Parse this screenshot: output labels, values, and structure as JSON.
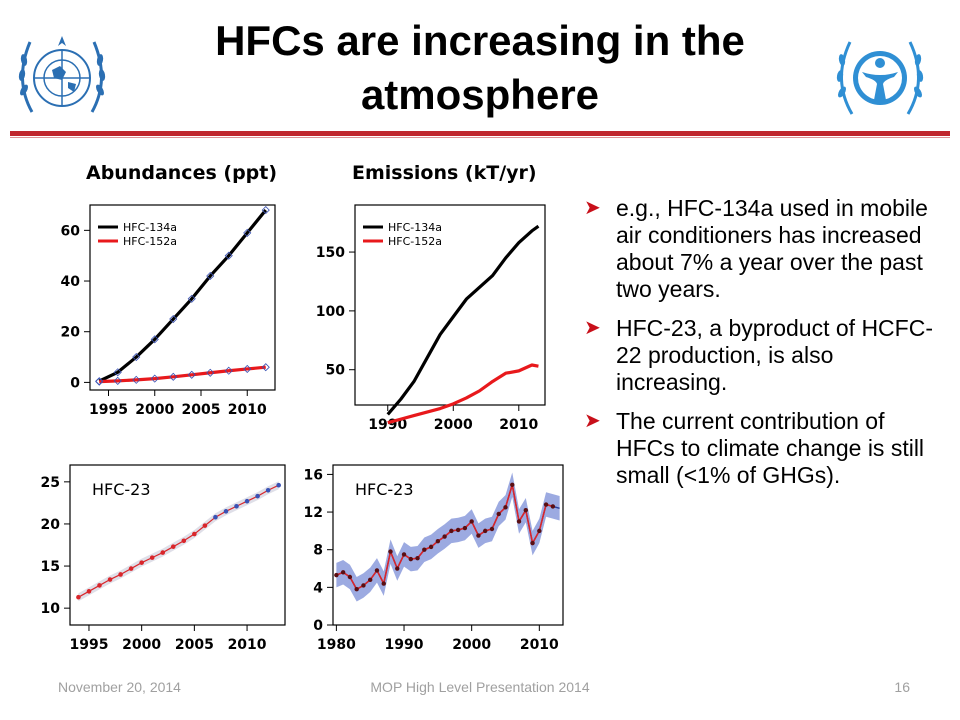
{
  "slide": {
    "title_line1": "HFCs are increasing in the",
    "title_line2": "atmosphere",
    "abundances_title": "Abundances (ppt)",
    "emissions_title": "Emissions (kT/yr)",
    "bullets": [
      "e.g., HFC-134a used in mobile air conditioners has increased about 7% a year over the past two years.",
      "HFC-23, a byproduct of HCFC-22 production, is also increasing.",
      "The current contribution of HFCs to climate change is still small (<1% of GHGs)."
    ],
    "footer": {
      "date": "November 20, 2014",
      "center": "MOP High Level Presentation 2014",
      "page": "16"
    },
    "logos": [
      "wmo-emblem",
      "unep-emblem"
    ]
  },
  "colors": {
    "accent_rule": "#c0262d",
    "hfc134a": "#000000",
    "hfc152a": "#e8191c",
    "hfc23_line": "#d9262b",
    "hfc23_band": "#4a64c8",
    "marker_blue": "#3a52b4"
  },
  "chart_data": [
    {
      "type": "line",
      "title": "Abundances (ppt)",
      "ylim": [
        -3,
        70
      ],
      "xlim": [
        1993,
        2013
      ],
      "yticks": [
        0,
        20,
        40,
        60
      ],
      "xticks": [
        1995,
        2000,
        2005,
        2010
      ],
      "legend_position": "top-left",
      "series": [
        {
          "name": "HFC-134a",
          "color": "#000000",
          "x": [
            1994,
            1996,
            1998,
            2000,
            2002,
            2004,
            2006,
            2008,
            2010,
            2012
          ],
          "y": [
            0.5,
            4,
            10,
            17,
            25,
            33,
            42,
            50,
            59,
            68
          ]
        },
        {
          "name": "HFC-152a",
          "color": "#e8191c",
          "x": [
            1994,
            1996,
            1998,
            2000,
            2002,
            2004,
            2006,
            2008,
            2010,
            2012
          ],
          "y": [
            0.3,
            0.6,
            1.0,
            1.5,
            2.2,
            3.0,
            3.8,
            4.6,
            5.3,
            6.0
          ]
        }
      ]
    },
    {
      "type": "line",
      "title": "Emissions (kT/yr)",
      "ylim": [
        20,
        190
      ],
      "xlim": [
        1985,
        2014
      ],
      "yticks": [
        50,
        100,
        150
      ],
      "xticks": [
        1990,
        2000,
        2010
      ],
      "legend_position": "top-left",
      "series": [
        {
          "name": "HFC-134a",
          "color": "#000000",
          "x": [
            1990,
            1992,
            1994,
            1996,
            1998,
            2000,
            2002,
            2004,
            2006,
            2008,
            2010,
            2012,
            2013
          ],
          "y": [
            12,
            25,
            40,
            60,
            80,
            95,
            110,
            120,
            130,
            145,
            158,
            168,
            172
          ]
        },
        {
          "name": "HFC-152a",
          "color": "#e8191c",
          "x": [
            1990,
            1992,
            1994,
            1996,
            1998,
            2000,
            2002,
            2004,
            2006,
            2008,
            2010,
            2012,
            2013
          ],
          "y": [
            5,
            8,
            11,
            14,
            17,
            21,
            26,
            32,
            40,
            47,
            49,
            54,
            53
          ]
        }
      ]
    },
    {
      "type": "line",
      "title": "",
      "annotation": "HFC-23",
      "ylim": [
        8,
        27
      ],
      "xlim": [
        1993.2,
        2013.6
      ],
      "yticks": [
        10,
        15,
        20,
        25
      ],
      "xticks": [
        1995,
        2000,
        2005,
        2010
      ],
      "series": [
        {
          "name": "HFC-23",
          "x": [
            1994,
            1995,
            1996,
            1997,
            1998,
            1999,
            2000,
            2001,
            2002,
            2003,
            2004,
            2005,
            2006,
            2007,
            2008,
            2009,
            2010,
            2011,
            2012,
            2013
          ],
          "y": [
            11.3,
            12.0,
            12.7,
            13.4,
            14.0,
            14.7,
            15.4,
            16.0,
            16.6,
            17.3,
            18.0,
            18.8,
            19.8,
            20.8,
            21.5,
            22.1,
            22.7,
            23.3,
            24.0,
            24.6
          ]
        }
      ]
    },
    {
      "type": "line",
      "title": "",
      "annotation": "HFC-23",
      "ylim": [
        0,
        17
      ],
      "xlim": [
        1979.5,
        2013.5
      ],
      "yticks": [
        0,
        4,
        8,
        12,
        16
      ],
      "xticks": [
        1980,
        1990,
        2000,
        2010
      ],
      "series": [
        {
          "name": "HFC-23",
          "x": [
            1980,
            1981,
            1982,
            1983,
            1984,
            1985,
            1986,
            1987,
            1988,
            1989,
            1990,
            1991,
            1992,
            1993,
            1994,
            1995,
            1996,
            1997,
            1998,
            1999,
            2000,
            2001,
            2002,
            2003,
            2004,
            2005,
            2006,
            2007,
            2008,
            2009,
            2010,
            2011,
            2012
          ],
          "y": [
            5.3,
            5.6,
            5.1,
            3.8,
            4.2,
            4.8,
            5.8,
            4.4,
            7.8,
            6.0,
            7.5,
            7.0,
            7.1,
            8.0,
            8.3,
            8.9,
            9.4,
            10.0,
            10.1,
            10.3,
            11.0,
            9.5,
            10.0,
            10.2,
            11.8,
            12.5,
            14.9,
            11.0,
            12.2,
            8.7,
            10.0,
            12.8,
            12.6
          ]
        }
      ]
    }
  ]
}
